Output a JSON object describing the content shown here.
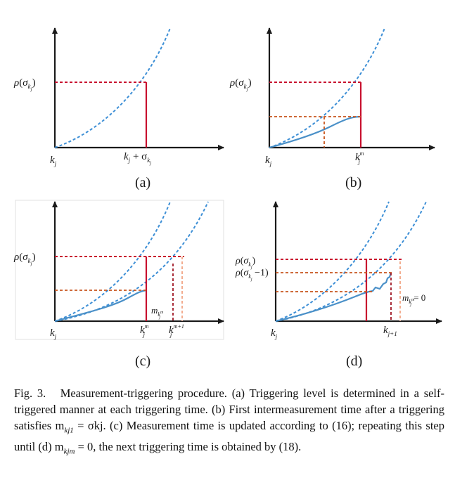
{
  "colors": {
    "dashed_curve": "#3d8fd6",
    "solid_curve": "#4a90c8",
    "red_line": "#c8102e",
    "orange_dashed": "#c8541c",
    "light_orange": "#f2a483",
    "axis": "#1a1a1a"
  },
  "panels": {
    "a": {
      "caption": "(a)",
      "y_label": "ρ(σ",
      "y_label_sub": "kj",
      "y_label_close": ")",
      "x_origin": "kj",
      "x_tick": "kj + σkj"
    },
    "b": {
      "caption": "(b)",
      "y_label": "ρ(σ",
      "y_label_sub": "kj",
      "y_label_close": ")",
      "x_origin": "kj",
      "x_tick": "kjm"
    },
    "c": {
      "caption": "(c)",
      "y_label": "ρ(σ",
      "y_label_sub": "kj",
      "y_label_close": ")",
      "x_origin": "kj",
      "x_tick_1": "kjm",
      "x_tick_2": "kjm+1",
      "annotation": "mkjm"
    },
    "d": {
      "caption": "(d)",
      "y_label_1": "ρ(σkj)",
      "y_label_2": "ρ(σkj −1)",
      "x_origin": "kj",
      "x_tick": "kj+1",
      "annotation": "mkjm = 0"
    }
  },
  "caption": {
    "prefix": "Fig. 3.",
    "text": "Measurement-triggering procedure. (a) Triggering level is determined in a self-triggered manner at each triggering time. (b) First intermeasurement time after a triggering satisfies m",
    "eq1_sub": "kj1",
    "eq1_rest": " = σkj. (c) Measurement time is updated according to (16); repeating this step until (d) m",
    "eq2_sub": "kjm",
    "eq2_rest": " = 0, the next triggering time is obtained by (18)."
  }
}
